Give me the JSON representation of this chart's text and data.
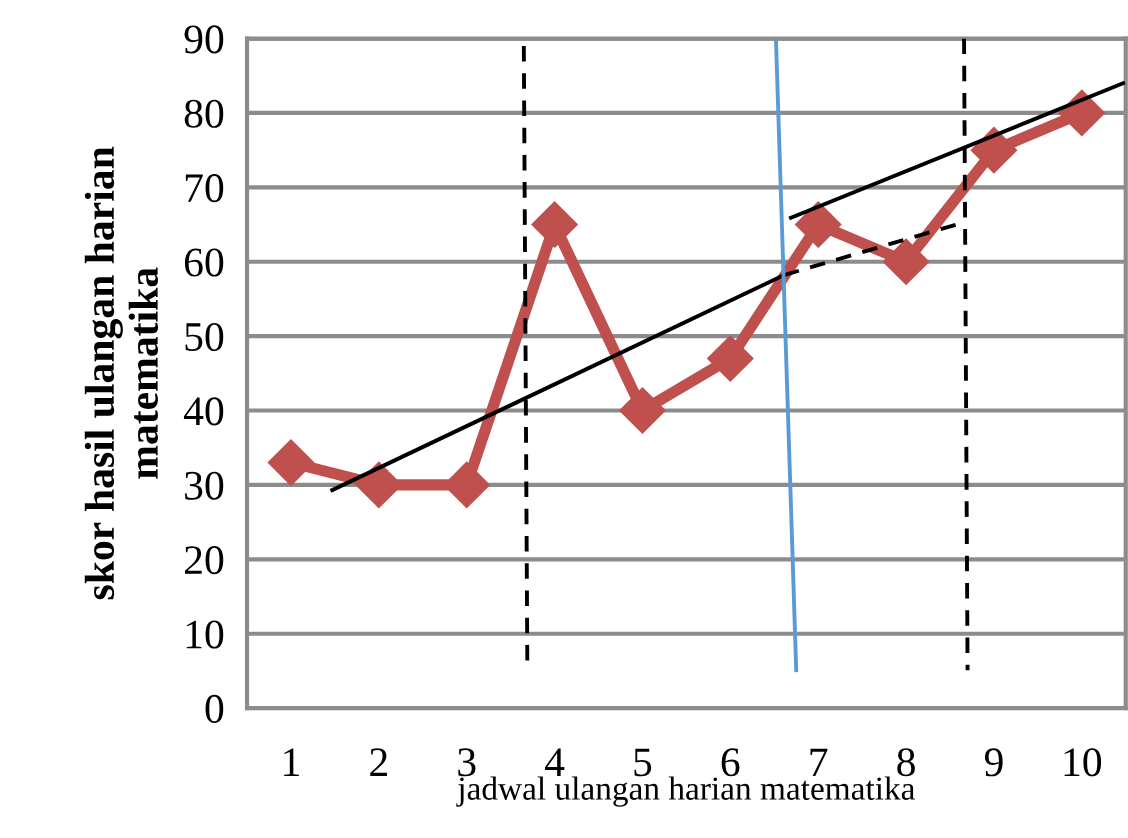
{
  "chart_data": {
    "type": "line",
    "xlabel": "jadwal ulangan harian matematika",
    "ylabel": "skor hasil ulangan harian\nmatematika",
    "xlim": [
      0.5,
      10.5
    ],
    "xticks": [
      1,
      2,
      3,
      4,
      5,
      6,
      7,
      8,
      9,
      10
    ],
    "ylim": [
      0,
      90
    ],
    "yticks": [
      0,
      10,
      20,
      30,
      40,
      50,
      60,
      70,
      80,
      90
    ],
    "grid": "y",
    "series": [
      {
        "color": "#c0504d",
        "x": [
          1,
          2,
          3,
          4,
          5,
          6,
          7,
          8,
          9,
          10
        ],
        "values": [
          33,
          30,
          30,
          65,
          40,
          47,
          65,
          60,
          75,
          80
        ],
        "marker": "diamond",
        "line_style": "solid"
      },
      {
        "color": "#000000",
        "x": [
          1.47,
          6.61
        ],
        "values": [
          29.3,
          58.2
        ],
        "line_style": "solid"
      },
      {
        "color": "#000000",
        "x": [
          6.61,
          8.66
        ],
        "values": [
          58.2,
          65.3
        ],
        "line_style": "dashed"
      },
      {
        "color": "#000000",
        "x": [
          6.69,
          10.47
        ],
        "values": [
          65.9,
          84.0
        ],
        "line_style": "solid"
      },
      {
        "color": "#000000",
        "x": [
          3.65,
          3.69
        ],
        "values": [
          89,
          5.6
        ],
        "line_style": "dashed"
      },
      {
        "color": "#5b9bd5",
        "x": [
          6.52,
          6.75
        ],
        "values": [
          89.6,
          5.1
        ],
        "line_style": "solid"
      },
      {
        "color": "#000000",
        "x": [
          8.66,
          8.7
        ],
        "values": [
          90,
          5.1
        ],
        "line_style": "dashed"
      }
    ]
  }
}
